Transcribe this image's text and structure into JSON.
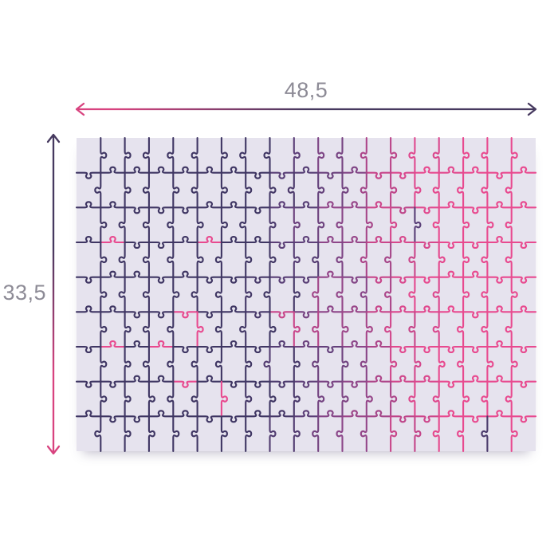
{
  "figure": {
    "kind": "puzzle-dimension-diagram",
    "width_label": "48,5",
    "height_label": "33,5",
    "label_color": "#8d8b96",
    "background": "#ffffff",
    "board": {
      "fill": "#e6e3ee",
      "cols": 19,
      "rows": 9,
      "seed": 20,
      "palette": [
        "#3f3663",
        "#5a3f77",
        "#8c4689",
        "#c44589",
        "#e84a8f"
      ],
      "outlier_probability": 0.05,
      "stroke_width": 2.1
    },
    "arrows": {
      "pink": "#d8437f",
      "purple": "#46395f"
    }
  }
}
